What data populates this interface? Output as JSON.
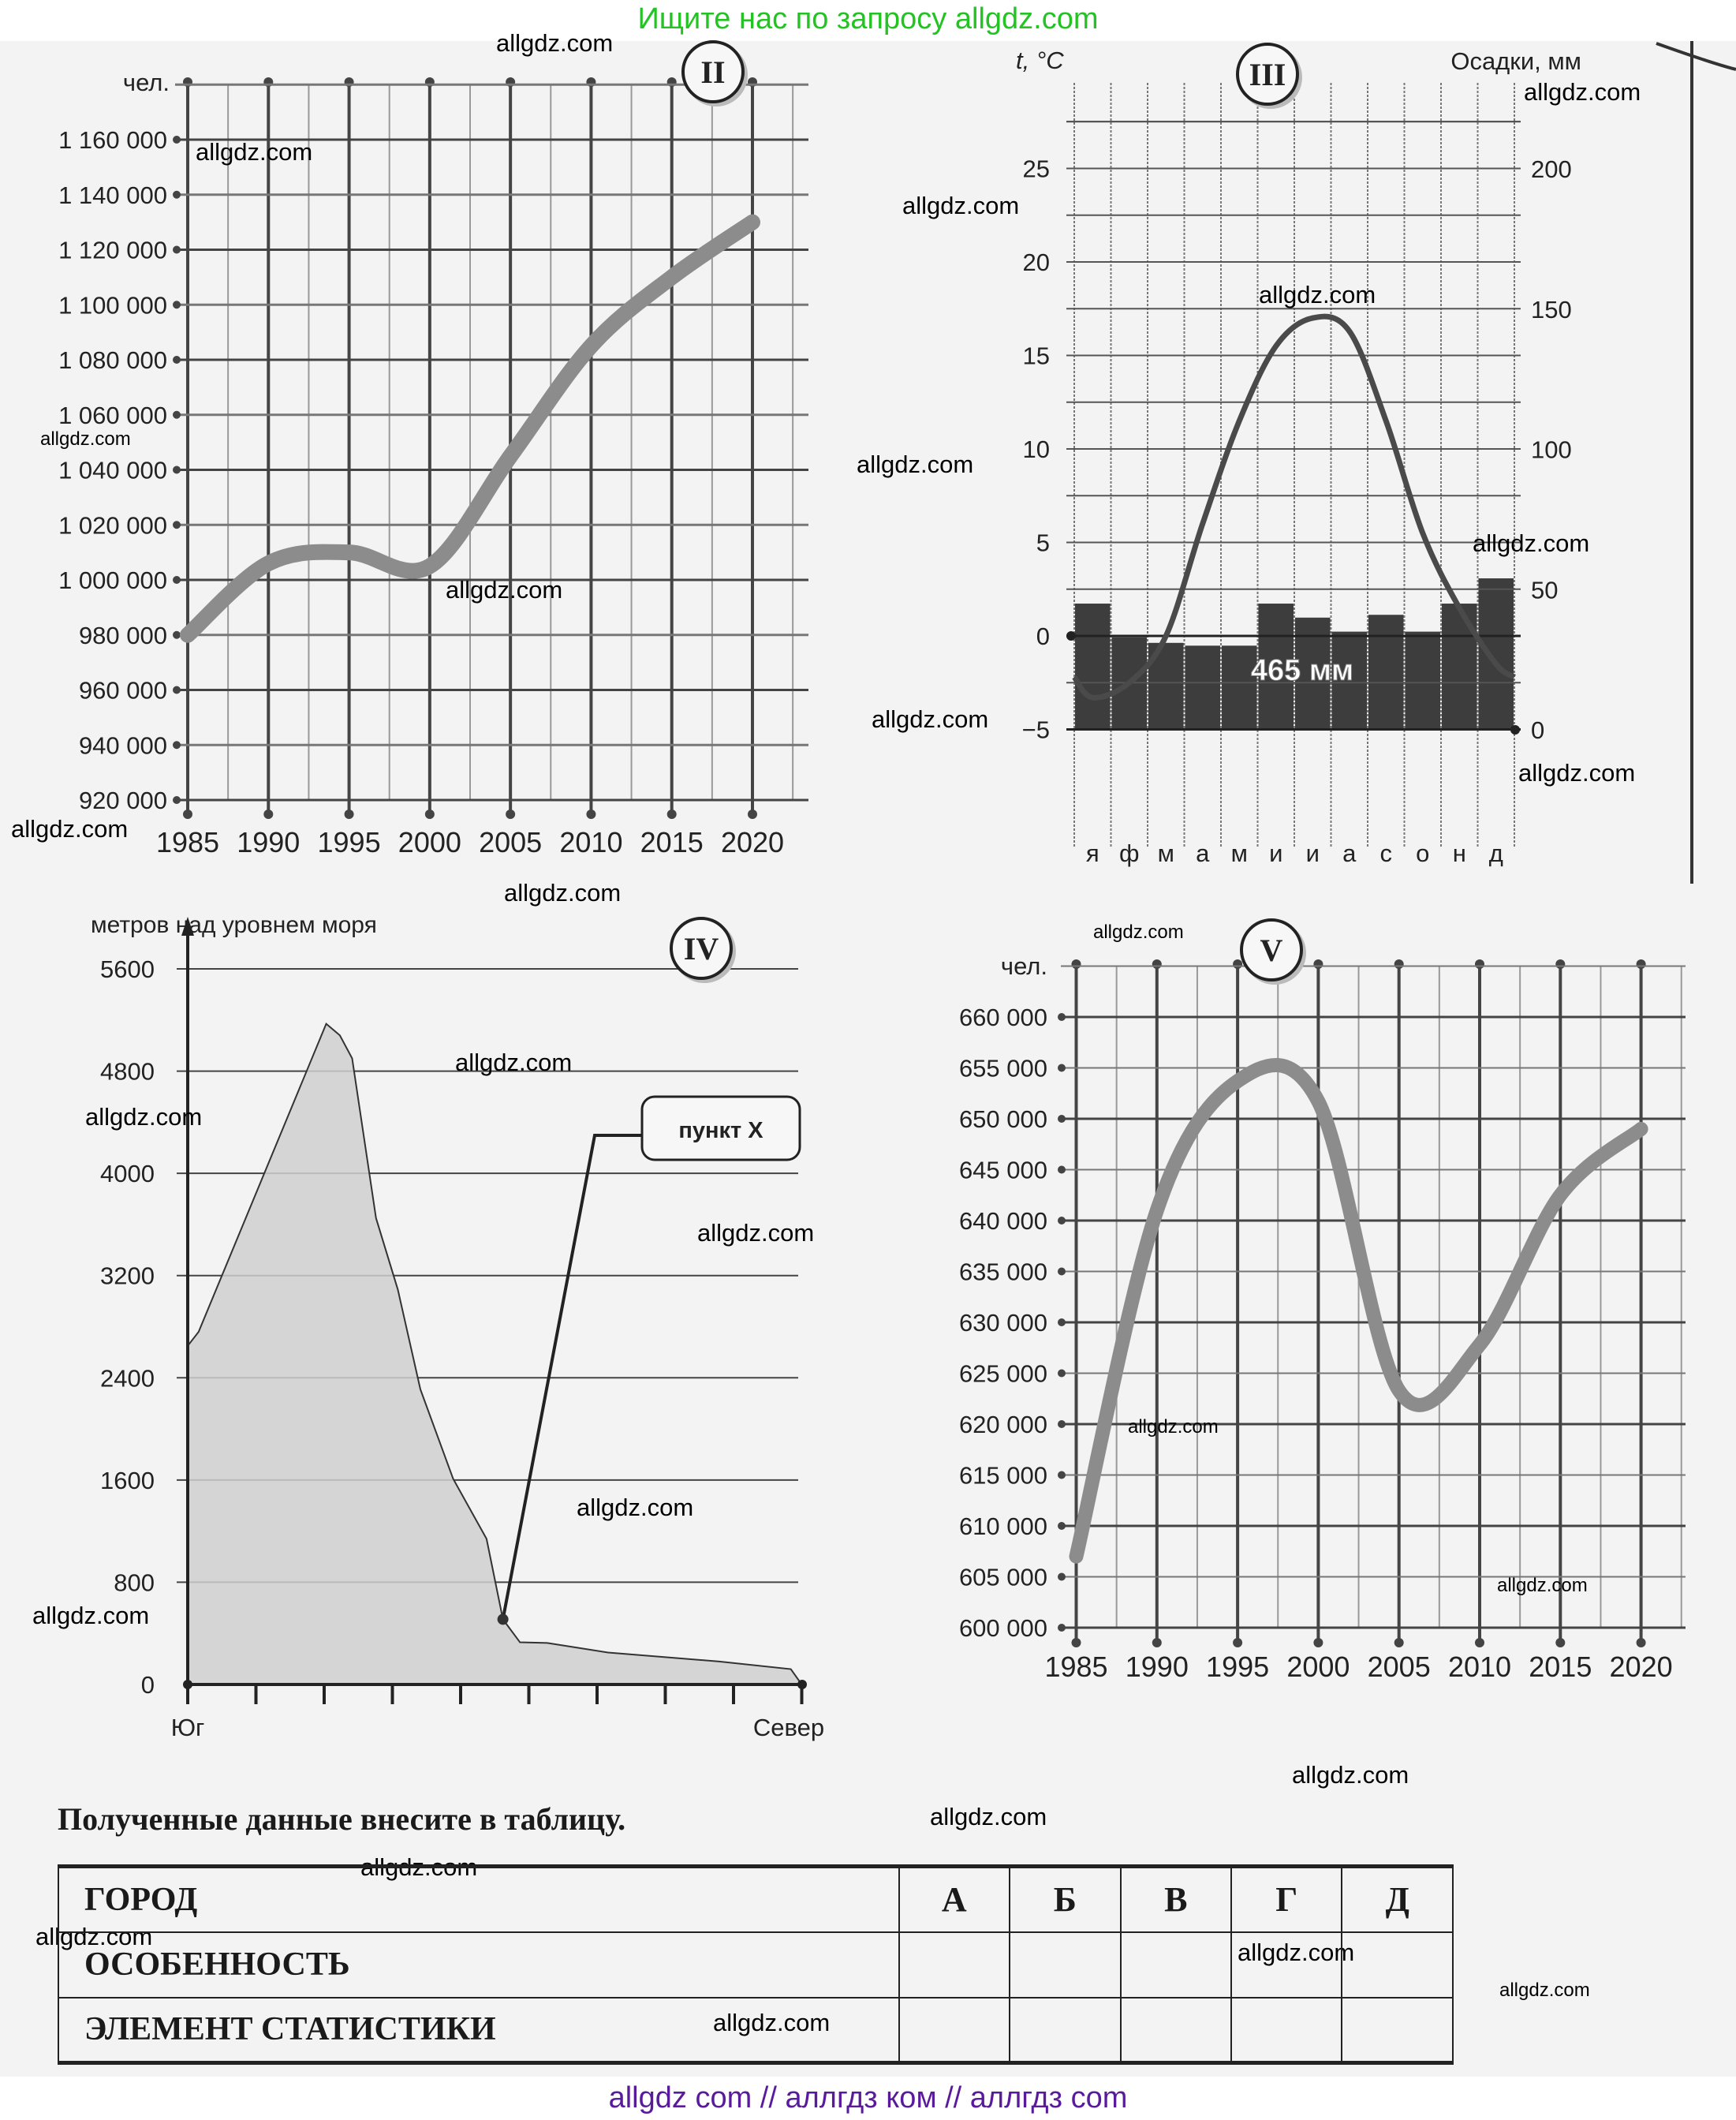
{
  "banner": {
    "top": "Ищите нас по запросу allgdz.com",
    "bottom": "allgdz com  //  аллгдз ком  //  аллгдз com"
  },
  "watermarks": [
    "allgdz.com",
    "allgdz.com",
    "allgdz.com",
    "allgdz.com",
    "allgdz.com",
    "allgdz.com",
    "allgdz.com",
    "allgdz.com",
    "allgdz.com",
    "allgdz.com",
    "allgdz.com",
    "allgdz.com",
    "allgdz.com",
    "allgdz.com",
    "allgdz.com",
    "allgdz.com",
    "allgdz.com",
    "allgdz.com",
    "allgdz.com",
    "allgdz.com",
    "allgdz.com",
    "allgdz.com",
    "allgdz.com",
    "allgdz.com",
    "allgdz.com",
    "allgdz.com",
    "allgdz.com",
    "allgdz.com"
  ],
  "chart_data": [
    {
      "id": "II",
      "badge": "II",
      "type": "line",
      "ylabel": "чел.",
      "x": [
        1985,
        1990,
        1995,
        2000,
        2005,
        2010,
        2015,
        2020
      ],
      "values": [
        980000,
        1006000,
        1010000,
        1005000,
        1045000,
        1085000,
        1110000,
        1130000
      ],
      "x_ticks": [
        1985,
        1990,
        1995,
        2000,
        2005,
        2010,
        2015,
        2020
      ],
      "y_ticks": [
        920000,
        940000,
        960000,
        980000,
        1000000,
        1020000,
        1040000,
        1060000,
        1080000,
        1100000,
        1120000,
        1140000,
        1160000
      ],
      "ylim": [
        920000,
        1180000
      ],
      "grid": true
    },
    {
      "id": "III",
      "badge": "III",
      "type": "bar+line",
      "ylabel_left": "t, °C",
      "ylabel_right": "Осадки, мм",
      "categories": [
        "я",
        "ф",
        "м",
        "а",
        "м",
        "и",
        "и",
        "а",
        "с",
        "о",
        "н",
        "д"
      ],
      "series": [
        {
          "name": "t, °C",
          "type": "line",
          "values": [
            -3.3,
            -2.5,
            0,
            6,
            11.5,
            15.5,
            17,
            16.3,
            11.5,
            5.5,
            1.5,
            -1.5
          ]
        },
        {
          "name": "Осадки, мм",
          "type": "bar",
          "values": [
            45,
            33,
            31,
            30,
            30,
            45,
            40,
            35,
            41,
            35,
            45,
            54
          ]
        }
      ],
      "annotation": "465 мм",
      "y_left_ticks": [
        -5,
        0,
        5,
        10,
        15,
        20,
        25
      ],
      "y_right_ticks": [
        0,
        50,
        100,
        150,
        200
      ],
      "ylim_left": [
        -5,
        25
      ],
      "ylim_right": [
        0,
        200
      ],
      "grid": true
    },
    {
      "id": "IV",
      "badge": "IV",
      "type": "area",
      "ylabel": "метров над уровнем моря",
      "x_start_label": "Юг",
      "x_end_label": "Север",
      "y_ticks": [
        0,
        800,
        1600,
        2400,
        3200,
        4000,
        4800,
        5600
      ],
      "profile": [
        [
          0,
          0
        ],
        [
          0,
          2650
        ],
        [
          0.16,
          2760
        ],
        [
          2.03,
          5170
        ],
        [
          2.23,
          5080
        ],
        [
          2.41,
          4900
        ],
        [
          2.76,
          3650
        ],
        [
          3.08,
          3090
        ],
        [
          3.41,
          2310
        ],
        [
          3.89,
          1610
        ],
        [
          4.38,
          1140
        ],
        [
          4.62,
          510
        ],
        [
          4.87,
          330
        ],
        [
          5.27,
          325
        ],
        [
          6.16,
          250
        ],
        [
          7.79,
          180
        ],
        [
          8.84,
          120
        ],
        [
          9,
          0
        ]
      ],
      "annotation": {
        "label": "пункт X",
        "at": [
          4.62,
          510
        ]
      },
      "grid": true
    },
    {
      "id": "V",
      "badge": "V",
      "type": "line",
      "ylabel": "чел.",
      "x": [
        1985,
        1990,
        1995,
        2000,
        2005,
        2010,
        2015,
        2020
      ],
      "values": [
        607000,
        641000,
        653700,
        651700,
        623300,
        627800,
        642500,
        649000
      ],
      "x_ticks": [
        1985,
        1990,
        1995,
        2000,
        2005,
        2010,
        2015,
        2020
      ],
      "y_ticks": [
        600000,
        605000,
        610000,
        615000,
        620000,
        625000,
        630000,
        635000,
        640000,
        645000,
        650000,
        655000,
        660000
      ],
      "ylim": [
        600000,
        665000
      ],
      "grid": true
    }
  ],
  "table": {
    "instruction": "Полученные данные внесите в таблицу.",
    "rows": [
      "ГОРОД",
      "ОСОБЕННОСТЬ",
      "ЭЛЕМЕНТ СТАТИСТИКИ"
    ],
    "columns": [
      "А",
      "Б",
      "В",
      "Г",
      "Д"
    ]
  }
}
